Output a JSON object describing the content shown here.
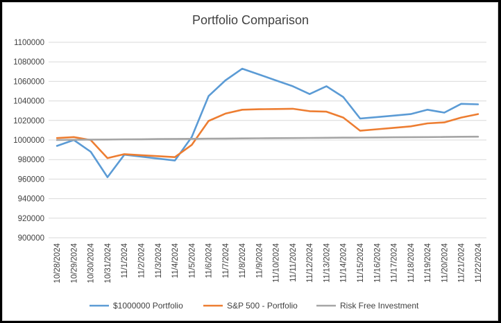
{
  "chart_data": {
    "type": "line",
    "title": "Portfolio Comparison",
    "xlabel": "",
    "ylabel": "",
    "ylim": [
      900000,
      1100000
    ],
    "ytick_step": 20000,
    "grid": true,
    "legend_position": "bottom",
    "categories": [
      "10/28/2024",
      "10/29/2024",
      "10/30/2024",
      "10/31/2024",
      "11/1/2024",
      "11/2/2024",
      "11/3/2024",
      "11/4/2024",
      "11/5/2024",
      "11/6/2024",
      "11/7/2024",
      "11/8/2024",
      "11/9/2024",
      "11/10/2024",
      "11/11/2024",
      "11/12/2024",
      "11/13/2024",
      "11/14/2024",
      "11/15/2024",
      "11/16/2024",
      "11/17/2024",
      "11/18/2024",
      "11/19/2024",
      "11/20/2024",
      "11/21/2024",
      "11/22/2024"
    ],
    "series": [
      {
        "name": "$1000000 Portfolio",
        "color": "#5b9bd5",
        "values": [
          994000,
          1000000,
          988000,
          962000,
          985000,
          983000,
          981000,
          979000,
          1003000,
          1045000,
          1061000,
          1073000,
          1067000,
          1061000,
          1055000,
          1047000,
          1055000,
          1044000,
          1022000,
          1023500,
          1025000,
          1026500,
          1031000,
          1028000,
          1037000,
          1036500
        ]
      },
      {
        "name": "S&P 500 - Portfolio",
        "color": "#ed7d31",
        "values": [
          1002000,
          1003000,
          1000000,
          981500,
          985500,
          984500,
          983500,
          982500,
          995000,
          1019500,
          1027000,
          1031000,
          1031500,
          1031700,
          1032000,
          1029500,
          1029000,
          1023000,
          1009500,
          1011000,
          1012500,
          1014000,
          1017000,
          1018000,
          1023000,
          1026500
        ]
      },
      {
        "name": "Risk Free Investment",
        "color": "#a5a5a5",
        "values": [
          1000000,
          1000200,
          1000400,
          1000500,
          1000700,
          1000800,
          1001000,
          1001100,
          1001200,
          1001400,
          1001500,
          1001600,
          1001800,
          1001900,
          1002000,
          1002100,
          1002300,
          1002400,
          1002500,
          1002600,
          1002800,
          1002900,
          1003000,
          1003100,
          1003300,
          1003400
        ]
      }
    ]
  }
}
